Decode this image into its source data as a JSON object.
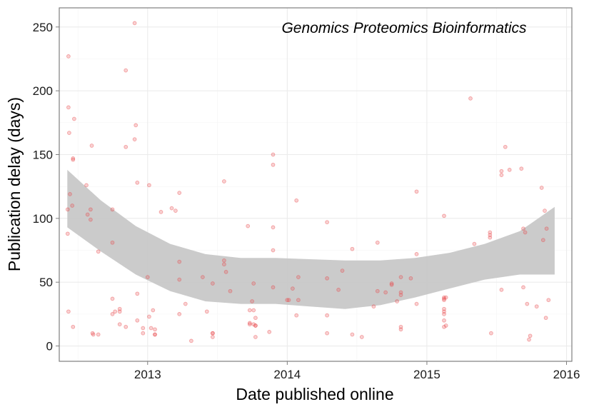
{
  "chart_data": {
    "type": "scatter",
    "annotation": "Genomics Proteomics Bioinformatics",
    "xlabel": "Date published online",
    "ylabel": "Publication delay (days)",
    "x_is_date": true,
    "xlim": [
      "2012-05-15",
      "2016-01-15"
    ],
    "ylim": [
      -12,
      265
    ],
    "x_ticks": [
      {
        "value": "2013-01-01",
        "label": "2013"
      },
      {
        "value": "2014-01-01",
        "label": "2014"
      },
      {
        "value": "2015-01-01",
        "label": "2015"
      },
      {
        "value": "2016-01-01",
        "label": "2016"
      }
    ],
    "y_ticks": [
      0,
      50,
      100,
      150,
      200,
      250
    ],
    "grid": true,
    "point_color": "#e8474a",
    "band_color": "#c8c8c8",
    "series": [
      {
        "points": [
          [
            "2012-06-08",
            227
          ],
          [
            "2012-06-08",
            187
          ],
          [
            "2012-06-10",
            167
          ],
          [
            "2012-06-20",
            146
          ],
          [
            "2012-06-20",
            147
          ],
          [
            "2012-06-23",
            178
          ],
          [
            "2012-06-12",
            119
          ],
          [
            "2012-06-18",
            110
          ],
          [
            "2012-06-06",
            107
          ],
          [
            "2012-06-06",
            88
          ],
          [
            "2012-06-08",
            27
          ],
          [
            "2012-06-20",
            15
          ],
          [
            "2012-07-25",
            126
          ],
          [
            "2012-07-28",
            103
          ],
          [
            "2012-08-05",
            99
          ],
          [
            "2012-08-05",
            107
          ],
          [
            "2012-08-08",
            157
          ],
          [
            "2012-08-10",
            10
          ],
          [
            "2012-08-12",
            9
          ],
          [
            "2012-08-25",
            74
          ],
          [
            "2012-08-25",
            9
          ],
          [
            "2012-10-01",
            107
          ],
          [
            "2012-10-01",
            81
          ],
          [
            "2012-10-01",
            37
          ],
          [
            "2012-10-01",
            25
          ],
          [
            "2012-10-08",
            27
          ],
          [
            "2012-10-20",
            27
          ],
          [
            "2012-10-20",
            29
          ],
          [
            "2012-10-20",
            17
          ],
          [
            "2012-11-05",
            216
          ],
          [
            "2012-11-05",
            156
          ],
          [
            "2012-11-05",
            15
          ],
          [
            "2012-11-28",
            253
          ],
          [
            "2012-11-28",
            162
          ],
          [
            "2012-12-01",
            173
          ],
          [
            "2012-12-05",
            128
          ],
          [
            "2012-12-05",
            41
          ],
          [
            "2012-12-05",
            20
          ],
          [
            "2012-12-20",
            14
          ],
          [
            "2012-12-20",
            10
          ],
          [
            "2013-01-01",
            54
          ],
          [
            "2013-01-05",
            126
          ],
          [
            "2013-01-05",
            23
          ],
          [
            "2013-01-10",
            14
          ],
          [
            "2013-01-15",
            28
          ],
          [
            "2013-01-20",
            9
          ],
          [
            "2013-01-20",
            9
          ],
          [
            "2013-01-20",
            13
          ],
          [
            "2013-02-05",
            105
          ],
          [
            "2013-03-05",
            108
          ],
          [
            "2013-03-15",
            106
          ],
          [
            "2013-03-25",
            52
          ],
          [
            "2013-03-25",
            25
          ],
          [
            "2013-03-25",
            120
          ],
          [
            "2013-03-25",
            66
          ],
          [
            "2013-04-10",
            33
          ],
          [
            "2013-04-25",
            4
          ],
          [
            "2013-05-25",
            54
          ],
          [
            "2013-06-05",
            27
          ],
          [
            "2013-06-20",
            10
          ],
          [
            "2013-06-20",
            10
          ],
          [
            "2013-06-20",
            7
          ],
          [
            "2013-06-20",
            49
          ],
          [
            "2013-07-20",
            129
          ],
          [
            "2013-07-20",
            67
          ],
          [
            "2013-07-20",
            64
          ],
          [
            "2013-07-25",
            58
          ],
          [
            "2013-08-05",
            43
          ],
          [
            "2013-09-20",
            94
          ],
          [
            "2013-09-25",
            28
          ],
          [
            "2013-09-25",
            17
          ],
          [
            "2013-09-25",
            18
          ],
          [
            "2013-10-01",
            35
          ],
          [
            "2013-10-05",
            28
          ],
          [
            "2013-10-05",
            17
          ],
          [
            "2013-10-05",
            49
          ],
          [
            "2013-10-10",
            22
          ],
          [
            "2013-10-10",
            7
          ],
          [
            "2013-10-10",
            16
          ],
          [
            "2013-10-10",
            16
          ],
          [
            "2013-11-15",
            11
          ],
          [
            "2013-11-25",
            150
          ],
          [
            "2013-11-25",
            142
          ],
          [
            "2013-11-25",
            93
          ],
          [
            "2013-11-25",
            75
          ],
          [
            "2013-11-25",
            46
          ],
          [
            "2014-01-01",
            36
          ],
          [
            "2014-01-05",
            36
          ],
          [
            "2014-01-15",
            45
          ],
          [
            "2014-01-25",
            114
          ],
          [
            "2014-01-25",
            24
          ],
          [
            "2014-01-30",
            54
          ],
          [
            "2014-01-30",
            36
          ],
          [
            "2014-04-15",
            97
          ],
          [
            "2014-04-15",
            53
          ],
          [
            "2014-04-15",
            24
          ],
          [
            "2014-04-15",
            10
          ],
          [
            "2014-05-15",
            44
          ],
          [
            "2014-05-25",
            59
          ],
          [
            "2014-06-20",
            76
          ],
          [
            "2014-06-20",
            9
          ],
          [
            "2014-07-15",
            7
          ],
          [
            "2014-08-15",
            31
          ],
          [
            "2014-08-25",
            43
          ],
          [
            "2014-08-25",
            81
          ],
          [
            "2014-09-15",
            42
          ],
          [
            "2014-10-01",
            48
          ],
          [
            "2014-10-01",
            49
          ],
          [
            "2014-10-15",
            35
          ],
          [
            "2014-10-25",
            13
          ],
          [
            "2014-10-25",
            42
          ],
          [
            "2014-10-25",
            40
          ],
          [
            "2014-10-25",
            15
          ],
          [
            "2014-10-25",
            54
          ],
          [
            "2014-11-20",
            53
          ],
          [
            "2014-12-05",
            121
          ],
          [
            "2014-12-05",
            72
          ],
          [
            "2014-12-05",
            33
          ],
          [
            "2015-02-15",
            102
          ],
          [
            "2015-02-15",
            38
          ],
          [
            "2015-02-15",
            37
          ],
          [
            "2015-02-15",
            36
          ],
          [
            "2015-02-15",
            29
          ],
          [
            "2015-02-15",
            27
          ],
          [
            "2015-02-15",
            25
          ],
          [
            "2015-02-15",
            20
          ],
          [
            "2015-02-15",
            15
          ],
          [
            "2015-02-20",
            38
          ],
          [
            "2015-02-20",
            16
          ],
          [
            "2015-04-25",
            194
          ],
          [
            "2015-05-05",
            80
          ],
          [
            "2015-06-15",
            89
          ],
          [
            "2015-06-15",
            87
          ],
          [
            "2015-06-15",
            85
          ],
          [
            "2015-06-18",
            10
          ],
          [
            "2015-07-15",
            134
          ],
          [
            "2015-07-15",
            137
          ],
          [
            "2015-07-15",
            44
          ],
          [
            "2015-07-25",
            156
          ],
          [
            "2015-08-05",
            138
          ],
          [
            "2015-09-05",
            139
          ],
          [
            "2015-09-10",
            92
          ],
          [
            "2015-09-10",
            46
          ],
          [
            "2015-09-15",
            89
          ],
          [
            "2015-09-20",
            33
          ],
          [
            "2015-09-25",
            5
          ],
          [
            "2015-09-28",
            8
          ],
          [
            "2015-10-15",
            31
          ],
          [
            "2015-10-28",
            124
          ],
          [
            "2015-11-01",
            83
          ],
          [
            "2015-11-05",
            106
          ],
          [
            "2015-11-08",
            22
          ],
          [
            "2015-11-10",
            92
          ],
          [
            "2015-11-15",
            36
          ]
        ]
      }
    ],
    "smooth": {
      "x": [
        "2012-06-05",
        "2012-09-01",
        "2012-12-01",
        "2013-03-01",
        "2013-06-01",
        "2013-09-01",
        "2013-12-01",
        "2014-03-01",
        "2014-06-01",
        "2014-09-01",
        "2014-12-01",
        "2015-03-01",
        "2015-06-01",
        "2015-09-01",
        "2015-12-01"
      ],
      "upper": [
        138,
        114,
        94,
        80,
        72,
        69,
        69,
        68,
        67,
        67,
        69,
        73,
        80,
        90,
        109
      ],
      "lower": [
        93,
        74,
        56,
        43,
        35,
        33,
        33,
        31,
        29,
        32,
        38,
        45,
        52,
        56,
        56
      ]
    }
  }
}
